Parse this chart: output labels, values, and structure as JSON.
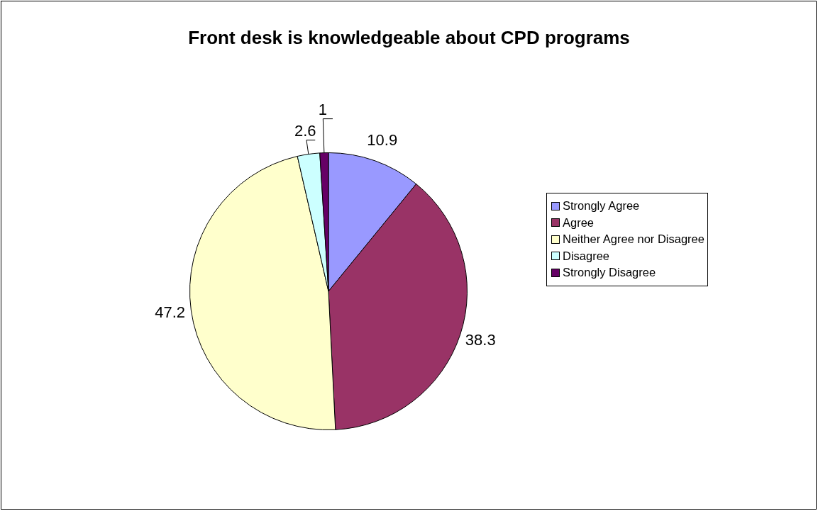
{
  "chart_data": {
    "type": "pie",
    "title": "Front desk is knowledgeable about CPD programs",
    "categories": [
      "Strongly Agree",
      "Agree",
      "Neither Agree nor Disagree",
      "Disagree",
      "Strongly Disagree"
    ],
    "values": [
      10.9,
      38.3,
      47.2,
      2.6,
      1
    ],
    "colors": [
      "#9999ff",
      "#993366",
      "#ffffcc",
      "#ccffff",
      "#660066"
    ],
    "data_labels": true,
    "legend": "right"
  }
}
